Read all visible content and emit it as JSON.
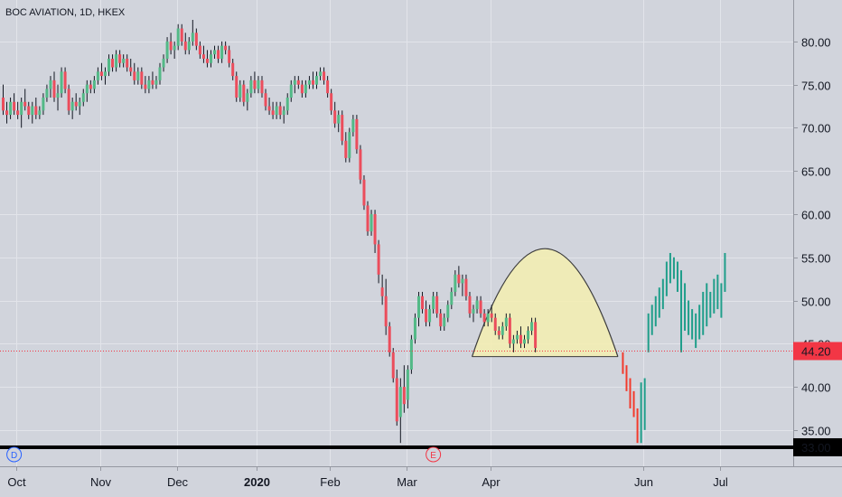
{
  "chart_data": {
    "type": "candlestick",
    "title": "BOC AVIATION, 1D, HKEX",
    "y_ticks": [
      "35.00",
      "40.00",
      "45.00",
      "50.00",
      "55.00",
      "60.00",
      "65.00",
      "70.00",
      "75.00",
      "80.00"
    ],
    "y_tick_values": [
      35,
      40,
      45,
      50,
      55,
      60,
      65,
      70,
      75,
      80
    ],
    "ylim": [
      30.8,
      84.8
    ],
    "x_ticks": [
      {
        "label": "Oct",
        "bar": 4,
        "bold": false
      },
      {
        "label": "Nov",
        "bar": 27,
        "bold": false
      },
      {
        "label": "Dec",
        "bar": 48,
        "bold": false
      },
      {
        "label": "2020",
        "bar": 70,
        "bold": true
      },
      {
        "label": "Feb",
        "bar": 90,
        "bold": false
      },
      {
        "label": "Mar",
        "bar": 111,
        "bold": false
      },
      {
        "label": "Apr",
        "bar": 134,
        "bold": false
      },
      {
        "label": "Jun",
        "bar": 176,
        "bold": false
      },
      {
        "label": "Jul",
        "bar": 197,
        "bold": false
      }
    ],
    "last_price_label": "44.20",
    "last_price": 44.2,
    "support_label": "33.00",
    "support": 33.0,
    "markers": [
      {
        "label": "D",
        "bar": 3
      },
      {
        "label": "E",
        "bar": 118
      }
    ],
    "colors": {
      "up": "#53b987",
      "down": "#eb4d5c",
      "projection_up": "#1f9e8a",
      "projection_down": "#f23a2c",
      "last_price": "#f23645",
      "pattern_fill": "#f5eeb0"
    },
    "cup_pattern": {
      "left_bar": 129,
      "right_bar": 169,
      "base": 43.5,
      "peak": 56.0
    },
    "ohlc": [
      [
        73.5,
        75,
        71.5,
        72
      ],
      [
        72,
        73,
        70.5,
        71.5
      ],
      [
        71.5,
        73.5,
        71,
        73
      ],
      [
        73,
        74,
        71.5,
        72
      ],
      [
        72,
        73,
        71,
        71.5
      ],
      [
        71.5,
        73.5,
        70,
        73
      ],
      [
        73,
        74.5,
        72,
        72.5
      ],
      [
        72.5,
        73,
        71,
        71.5
      ],
      [
        71.5,
        73,
        70.5,
        72.5
      ],
      [
        72.5,
        73.5,
        71,
        71.5
      ],
      [
        71.5,
        72.5,
        71,
        72
      ],
      [
        72,
        74,
        71.5,
        73.5
      ],
      [
        73.5,
        75,
        73,
        74.5
      ],
      [
        74.5,
        76,
        73.5,
        75.5
      ],
      [
        75.5,
        76.5,
        73,
        73.5
      ],
      [
        73.5,
        75,
        72,
        74
      ],
      [
        74,
        77,
        73.5,
        76.5
      ],
      [
        76.5,
        77,
        74,
        74.5
      ],
      [
        74.5,
        75,
        71.5,
        72
      ],
      [
        72,
        73.5,
        71,
        73
      ],
      [
        73,
        74,
        72,
        72.5
      ],
      [
        72.5,
        73.5,
        71.5,
        73
      ],
      [
        73,
        74.5,
        72.5,
        74
      ],
      [
        74,
        75.5,
        73,
        75
      ],
      [
        75,
        75.5,
        74,
        74.5
      ],
      [
        74.5,
        76,
        74,
        75.5
      ],
      [
        75.5,
        77,
        75,
        76.5
      ],
      [
        76.5,
        77.5,
        75.5,
        76
      ],
      [
        76,
        77,
        75,
        76.5
      ],
      [
        76.5,
        78.5,
        76,
        78
      ],
      [
        78,
        78.5,
        76.5,
        77
      ],
      [
        77,
        79,
        76.5,
        78.5
      ],
      [
        78.5,
        79,
        77,
        77.5
      ],
      [
        77.5,
        78.5,
        77,
        78
      ],
      [
        78,
        78.5,
        76.5,
        77
      ],
      [
        77,
        78,
        76,
        76.5
      ],
      [
        76.5,
        77.5,
        75,
        75.5
      ],
      [
        75.5,
        77,
        75,
        76.5
      ],
      [
        76.5,
        77,
        74.5,
        75
      ],
      [
        75,
        76,
        74,
        74.5
      ],
      [
        74.5,
        76,
        74,
        75.5
      ],
      [
        75.5,
        76.5,
        74.5,
        75
      ],
      [
        75,
        76,
        74.5,
        75.5
      ],
      [
        75.5,
        77.5,
        75,
        77
      ],
      [
        77,
        78.5,
        76.5,
        78
      ],
      [
        78,
        80.5,
        77.5,
        80
      ],
      [
        80,
        81,
        78.5,
        79
      ],
      [
        79,
        80,
        78,
        79.5
      ],
      [
        79.5,
        82,
        79,
        81.5
      ],
      [
        81.5,
        82,
        79.5,
        80
      ],
      [
        80,
        81,
        78.5,
        79
      ],
      [
        79,
        80.5,
        78.5,
        80
      ],
      [
        80,
        82.5,
        79.5,
        81
      ],
      [
        81,
        81.5,
        79,
        79.5
      ],
      [
        79.5,
        80,
        78,
        78.5
      ],
      [
        78.5,
        79.5,
        77.5,
        78
      ],
      [
        78,
        79,
        77,
        77.5
      ],
      [
        77.5,
        79,
        77,
        78.5
      ],
      [
        78.5,
        79.5,
        78,
        79
      ],
      [
        79,
        79.5,
        77.5,
        78
      ],
      [
        78,
        80,
        77.5,
        79.5
      ],
      [
        79.5,
        80,
        78.5,
        79
      ],
      [
        79,
        79.5,
        77,
        77.5
      ],
      [
        77.5,
        78,
        75.5,
        76
      ],
      [
        76,
        76.5,
        73,
        73.5
      ],
      [
        73.5,
        75.5,
        73,
        75
      ],
      [
        75,
        75.5,
        72.5,
        73
      ],
      [
        73,
        74.5,
        72,
        74
      ],
      [
        74,
        76,
        73.5,
        75.5
      ],
      [
        75.5,
        76.5,
        74,
        74.5
      ],
      [
        74.5,
        76,
        74,
        75.5
      ],
      [
        75.5,
        76,
        73.5,
        74
      ],
      [
        74,
        74.5,
        72,
        72.5
      ],
      [
        72.5,
        73.5,
        71.5,
        72
      ],
      [
        72,
        73,
        71,
        71.5
      ],
      [
        71.5,
        73,
        71,
        72.5
      ],
      [
        72.5,
        73,
        71,
        71.5
      ],
      [
        71.5,
        72.5,
        70.5,
        72
      ],
      [
        72,
        74,
        71.5,
        73.5
      ],
      [
        73.5,
        75.5,
        73,
        75
      ],
      [
        75,
        76,
        74,
        75.5
      ],
      [
        75.5,
        76,
        74.5,
        75
      ],
      [
        75,
        75.5,
        73.5,
        74
      ],
      [
        74,
        75.5,
        73.5,
        75
      ],
      [
        75,
        76,
        74.5,
        75.5
      ],
      [
        75.5,
        76.5,
        74.5,
        75
      ],
      [
        75,
        76.5,
        74.5,
        76
      ],
      [
        76,
        77,
        75.5,
        76.5
      ],
      [
        76.5,
        77,
        75,
        75.5
      ],
      [
        75.5,
        76,
        73.5,
        74
      ],
      [
        74,
        74.5,
        71.5,
        72
      ],
      [
        72,
        73,
        70,
        70.5
      ],
      [
        70.5,
        72,
        69.5,
        71.5
      ],
      [
        71.5,
        72,
        68,
        68.5
      ],
      [
        68.5,
        69.5,
        66,
        66.5
      ],
      [
        66.5,
        70,
        66,
        69.5
      ],
      [
        69.5,
        71.5,
        69,
        71
      ],
      [
        71,
        71.5,
        67,
        67.5
      ],
      [
        67.5,
        68,
        63.5,
        64
      ],
      [
        64,
        64.5,
        60.5,
        61
      ],
      [
        61,
        61.5,
        57.5,
        58
      ],
      [
        58,
        60.5,
        57.5,
        60
      ],
      [
        60,
        60.5,
        55.5,
        56.5
      ],
      [
        56.5,
        57,
        52,
        53
      ],
      [
        51.5,
        53,
        49.5,
        50.5
      ],
      [
        50.5,
        52.5,
        46,
        47
      ],
      [
        47,
        47.5,
        43.5,
        44
      ],
      [
        44,
        44.5,
        40.5,
        41
      ],
      [
        41,
        42,
        35.5,
        36
      ],
      [
        36.5,
        41,
        33.5,
        40
      ],
      [
        40,
        42.5,
        37,
        38
      ],
      [
        38.5,
        42.5,
        37.5,
        42
      ],
      [
        42,
        46,
        41.5,
        45.5
      ],
      [
        45.5,
        48.5,
        45,
        48
      ],
      [
        48,
        51,
        47,
        50.5
      ],
      [
        50.5,
        51,
        48.5,
        49
      ],
      [
        49,
        50,
        47,
        47.5
      ],
      [
        47.5,
        49.5,
        47,
        49
      ],
      [
        49,
        51,
        48.5,
        50.5
      ],
      [
        50.5,
        51,
        48,
        48.5
      ],
      [
        48.5,
        49,
        46.5,
        47
      ],
      [
        47,
        48.5,
        46.5,
        48
      ],
      [
        48,
        50,
        47.5,
        49.5
      ],
      [
        49.5,
        51.5,
        49,
        51
      ],
      [
        51,
        53.5,
        50.5,
        53
      ],
      [
        53,
        54,
        51.5,
        52
      ],
      [
        52,
        53,
        50.5,
        52.5
      ],
      [
        52.5,
        53,
        50,
        50.5
      ],
      [
        50.5,
        51,
        48,
        48.5
      ],
      [
        48.5,
        49.5,
        47.5,
        49
      ],
      [
        49,
        50.5,
        48.5,
        50
      ],
      [
        50,
        50.5,
        48,
        48.5
      ],
      [
        48.5,
        49,
        47,
        47.5
      ],
      [
        47.5,
        49,
        47,
        48.5
      ],
      [
        48.5,
        49.5,
        47.5,
        48
      ],
      [
        48,
        48.5,
        46,
        46.5
      ],
      [
        46.5,
        47,
        45.5,
        46
      ],
      [
        46,
        47.5,
        45.5,
        47
      ],
      [
        47,
        48.5,
        46.5,
        48
      ],
      [
        48,
        48.5,
        44.5,
        45
      ],
      [
        45,
        46,
        44,
        45.5
      ],
      [
        45.5,
        46.5,
        45,
        46
      ],
      [
        46,
        47,
        44.5,
        45
      ],
      [
        45,
        46,
        44.5,
        45.5
      ],
      [
        45.5,
        47,
        45,
        46.5
      ],
      [
        46.5,
        48,
        46,
        47.5
      ],
      [
        47.5,
        48,
        44,
        44.5
      ]
    ],
    "projection_bars": [
      {
        "bar": 177,
        "high": 48.5,
        "low": 44,
        "color": "projection_up"
      },
      {
        "bar": 178,
        "high": 49.5,
        "low": 46,
        "color": "projection_up"
      },
      {
        "bar": 179,
        "high": 50.5,
        "low": 47,
        "color": "projection_up"
      },
      {
        "bar": 180,
        "high": 51.5,
        "low": 48,
        "color": "projection_up"
      },
      {
        "bar": 181,
        "high": 52.5,
        "low": 49,
        "color": "projection_up"
      },
      {
        "bar": 182,
        "high": 54.5,
        "low": 50.5,
        "color": "projection_up"
      },
      {
        "bar": 183,
        "high": 55.5,
        "low": 52,
        "color": "projection_up"
      },
      {
        "bar": 184,
        "high": 55,
        "low": 52.5,
        "color": "projection_up"
      },
      {
        "bar": 185,
        "high": 54.5,
        "low": 51,
        "color": "projection_up"
      },
      {
        "bar": 186,
        "high": 53.5,
        "low": 44,
        "color": "projection_up"
      },
      {
        "bar": 187,
        "high": 52,
        "low": 46.5,
        "color": "projection_up"
      },
      {
        "bar": 188,
        "high": 50,
        "low": 46,
        "color": "projection_up"
      },
      {
        "bar": 189,
        "high": 49,
        "low": 45.5,
        "color": "projection_up"
      },
      {
        "bar": 190,
        "high": 48.5,
        "low": 44.5,
        "color": "projection_up"
      },
      {
        "bar": 191,
        "high": 49.5,
        "low": 45.5,
        "color": "projection_up"
      },
      {
        "bar": 192,
        "high": 51,
        "low": 46,
        "color": "projection_up"
      },
      {
        "bar": 193,
        "high": 52,
        "low": 47,
        "color": "projection_up"
      },
      {
        "bar": 194,
        "high": 51,
        "low": 48,
        "color": "projection_up"
      },
      {
        "bar": 195,
        "high": 52.5,
        "low": 48.5,
        "color": "projection_up"
      },
      {
        "bar": 196,
        "high": 53,
        "low": 49,
        "color": "projection_up"
      },
      {
        "bar": 197,
        "high": 52,
        "low": 48,
        "color": "projection_up"
      },
      {
        "bar": 198,
        "high": 55.5,
        "low": 51,
        "color": "projection_up"
      },
      {
        "bar": 170,
        "high": 44,
        "low": 41.5,
        "color": "projection_down"
      },
      {
        "bar": 171,
        "high": 42.5,
        "low": 39.5,
        "color": "projection_down"
      },
      {
        "bar": 172,
        "high": 41,
        "low": 37.5,
        "color": "projection_down"
      },
      {
        "bar": 173,
        "high": 39.5,
        "low": 36.5,
        "color": "projection_down"
      },
      {
        "bar": 174,
        "high": 37.5,
        "low": 33.5,
        "color": "projection_down"
      },
      {
        "bar": 175,
        "high": 40.5,
        "low": 33.5,
        "color": "projection_up"
      },
      {
        "bar": 176,
        "high": 41,
        "low": 35,
        "color": "projection_up"
      }
    ]
  }
}
